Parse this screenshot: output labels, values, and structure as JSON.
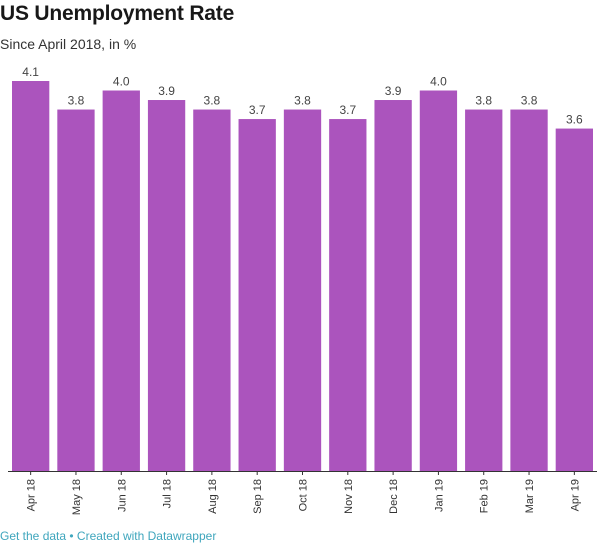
{
  "header": {
    "title": "US Unemployment Rate",
    "subtitle": "Since April 2018, in %"
  },
  "footer": {
    "get_data_label": "Get the data",
    "separator": " • ",
    "credit_label": "Created with Datawrapper"
  },
  "colors": {
    "bar": "#ab54bd",
    "value_label": "#444444",
    "axis_label": "#333333",
    "link": "#3fa6bd"
  },
  "chart_data": {
    "type": "bar",
    "title": "US Unemployment Rate",
    "subtitle": "Since April 2018, in %",
    "categories": [
      "Apr 18",
      "May 18",
      "Jun 18",
      "Jul 18",
      "Aug 18",
      "Sep 18",
      "Oct 18",
      "Nov 18",
      "Dec 18",
      "Jan 19",
      "Feb 19",
      "Mar 19",
      "Apr 19"
    ],
    "values": [
      4.1,
      3.8,
      4.0,
      3.9,
      3.8,
      3.7,
      3.8,
      3.7,
      3.9,
      4.0,
      3.8,
      3.8,
      3.6
    ],
    "value_labels": [
      "4.1",
      "3.8",
      "4.0",
      "3.9",
      "3.8",
      "3.7",
      "3.8",
      "3.7",
      "3.9",
      "4.0",
      "3.8",
      "3.8",
      "3.6"
    ],
    "ylim": [
      0,
      4.1
    ],
    "grid": false,
    "xlabel": "",
    "ylabel": ""
  }
}
